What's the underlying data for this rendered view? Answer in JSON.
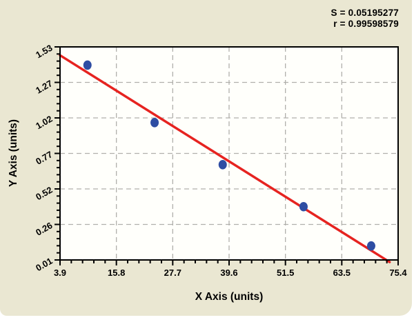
{
  "stats": {
    "s_label": "S = 0.05195277",
    "r_label": "r = 0.99598579"
  },
  "chart_data": {
    "type": "scatter",
    "title": "",
    "xlabel": "X Axis (units)",
    "ylabel": "Y Axis (units)",
    "xlim": [
      3.9,
      75.4
    ],
    "ylim": [
      0.01,
      1.53
    ],
    "x_tick_labels": [
      "3.9",
      "15.8",
      "27.7",
      "39.6",
      "51.5",
      "63.5",
      "75.4"
    ],
    "y_tick_labels": [
      "0.01",
      "0.26",
      "0.52",
      "0.77",
      "1.02",
      "1.27",
      "1.53"
    ],
    "subdivisions_per_major": 5,
    "grid": "dashed-major",
    "legend": "none",
    "points": [
      {
        "x": 9.7,
        "y": 1.4
      },
      {
        "x": 23.9,
        "y": 0.99
      },
      {
        "x": 38.3,
        "y": 0.69
      },
      {
        "x": 55.4,
        "y": 0.39
      },
      {
        "x": 69.7,
        "y": 0.11
      }
    ],
    "regression_line": {
      "x1": 3.9,
      "y1": 1.47,
      "x2": 73.6,
      "y2": -0.005
    },
    "colors": {
      "panel_background": "#eae7d2",
      "plot_background": "#fffffb",
      "grid": "#b0afab",
      "frame": "#000000",
      "text": "#000000",
      "point_fill": "#2e4da3",
      "line": "#e62320"
    }
  }
}
